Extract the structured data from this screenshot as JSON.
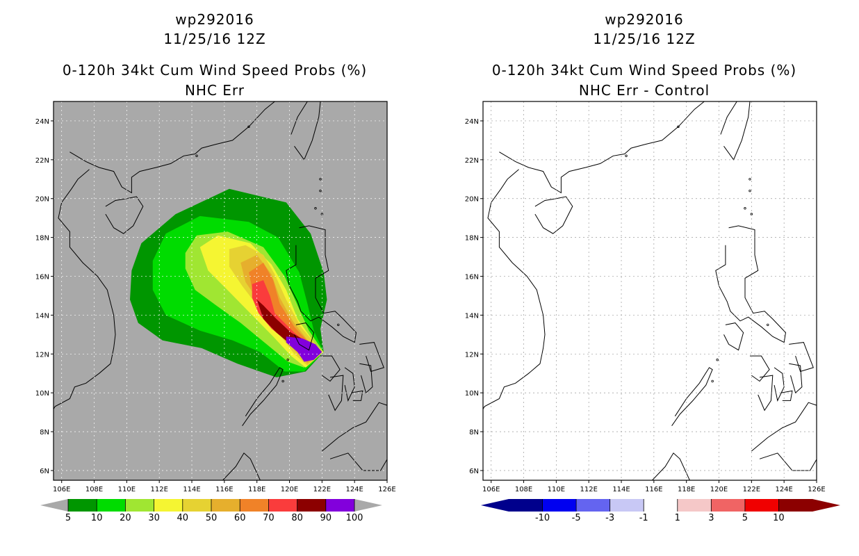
{
  "panels": [
    {
      "title_line1": "wp292016",
      "title_line2": "11/25/16 12Z",
      "title_line3": "0-120h 34kt Cum Wind Speed Probs (%)",
      "title_line4": "NHC Err",
      "background": "#a9a9a9"
    },
    {
      "title_line1": "wp292016",
      "title_line2": "11/25/16 12Z",
      "title_line3": "0-120h 34kt Cum Wind Speed Probs (%)",
      "title_line4": "NHC Err - Control",
      "background": "#ffffff"
    }
  ],
  "chart_data": [
    {
      "type": "heatmap",
      "title": "0-120h 34kt Cum Wind Speed Probs (%)",
      "subtitle": "NHC Err",
      "xlim": [
        105.5,
        126
      ],
      "ylim": [
        5.5,
        25
      ],
      "x_ticks": [
        "106E",
        "108E",
        "110E",
        "112E",
        "114E",
        "116E",
        "118E",
        "120E",
        "122E",
        "124E",
        "126E"
      ],
      "y_ticks": [
        "6N",
        "8N",
        "10N",
        "12N",
        "14N",
        "16N",
        "18N",
        "20N",
        "22N",
        "24N"
      ],
      "grid": true,
      "colorbar": {
        "labels": [
          "5",
          "10",
          "20",
          "30",
          "40",
          "50",
          "60",
          "70",
          "80",
          "90",
          "100"
        ],
        "colors": [
          "#009600",
          "#00dc00",
          "#a0e632",
          "#f5f532",
          "#e6d232",
          "#e6af2d",
          "#f08228",
          "#fa3c3c",
          "#8c0000",
          "#8200dc"
        ]
      },
      "contours": [
        {
          "level": "5",
          "color": "#009600",
          "points": [
            [
              110.9,
              17.7
            ],
            [
              113,
              19.2
            ],
            [
              116.3,
              20.5
            ],
            [
              119.8,
              19.8
            ],
            [
              121.3,
              18.2
            ],
            [
              122.1,
              16.2
            ],
            [
              122.3,
              14.8
            ],
            [
              121.9,
              13.3
            ],
            [
              122.1,
              12.1
            ],
            [
              121,
              11.1
            ],
            [
              119.2,
              10.8
            ],
            [
              116.8,
              11.5
            ],
            [
              114.6,
              12.3
            ],
            [
              112.2,
              12.7
            ],
            [
              110.7,
              13.6
            ],
            [
              110.2,
              14.8
            ],
            [
              110.3,
              16.3
            ]
          ]
        },
        {
          "level": "10",
          "color": "#00dc00",
          "points": [
            [
              111.6,
              16.8
            ],
            [
              112.4,
              18.2
            ],
            [
              114.5,
              19.1
            ],
            [
              117.5,
              18.8
            ],
            [
              119.3,
              18
            ],
            [
              120.6,
              16.2
            ],
            [
              121.1,
              14.6
            ],
            [
              121.5,
              13.2
            ],
            [
              122.1,
              12.1
            ],
            [
              120.9,
              11.1
            ],
            [
              119.7,
              11.1
            ],
            [
              118.2,
              12.1
            ],
            [
              116.5,
              12.7
            ],
            [
              114.5,
              13.2
            ],
            [
              112.4,
              14
            ],
            [
              111.6,
              15.3
            ]
          ]
        },
        {
          "level": "20",
          "color": "#a0e632",
          "points": [
            [
              113.6,
              17.2
            ],
            [
              114.3,
              18.1
            ],
            [
              116.2,
              18.3
            ],
            [
              118.4,
              17.5
            ],
            [
              119.7,
              16
            ],
            [
              120.5,
              14.5
            ],
            [
              121.2,
              13.2
            ],
            [
              122.1,
              12.1
            ],
            [
              120.9,
              11.3
            ],
            [
              119.9,
              11.6
            ],
            [
              118.6,
              12.5
            ],
            [
              117,
              13.6
            ],
            [
              115.5,
              14.5
            ],
            [
              114.2,
              15.3
            ],
            [
              113.6,
              16.4
            ]
          ]
        },
        {
          "level": "30",
          "color": "#f5f532",
          "points": [
            [
              114.5,
              17.5
            ],
            [
              115.6,
              18.1
            ],
            [
              117.6,
              17.7
            ],
            [
              118.9,
              16.6
            ],
            [
              119.8,
              15.3
            ],
            [
              120.5,
              13.8
            ],
            [
              121.6,
              12.5
            ],
            [
              122.1,
              12.1
            ],
            [
              121,
              11.3
            ],
            [
              120.1,
              11.9
            ],
            [
              119,
              12.9
            ],
            [
              117.7,
              14
            ],
            [
              116.3,
              15.2
            ],
            [
              115,
              16.3
            ]
          ]
        },
        {
          "level": "40",
          "color": "#e6d232",
          "points": [
            [
              116.3,
              17.4
            ],
            [
              117.3,
              17.6
            ],
            [
              118.4,
              17.1
            ],
            [
              119.1,
              16.1
            ],
            [
              119.8,
              14.8
            ],
            [
              120.7,
              13.4
            ],
            [
              121.8,
              12.3
            ],
            [
              122.1,
              12.1
            ],
            [
              121.1,
              11.4
            ],
            [
              120.3,
              12
            ],
            [
              119.2,
              13.2
            ],
            [
              118.1,
              14.4
            ],
            [
              117.1,
              15.5
            ],
            [
              116.3,
              16.5
            ]
          ]
        },
        {
          "level": "50",
          "color": "#e6af2d",
          "points": [
            [
              117,
              16.7
            ],
            [
              118,
              17.1
            ],
            [
              118.9,
              16.1
            ],
            [
              119.4,
              14.9
            ],
            [
              120.2,
              13.7
            ],
            [
              121.4,
              12.4
            ],
            [
              122,
              12.1
            ],
            [
              121.1,
              11.5
            ],
            [
              120.3,
              12.2
            ],
            [
              119.2,
              13.4
            ],
            [
              118.2,
              14.6
            ],
            [
              117.3,
              15.7
            ]
          ]
        },
        {
          "level": "60",
          "color": "#f08228",
          "points": [
            [
              117.5,
              16.2
            ],
            [
              118.4,
              16.7
            ],
            [
              119,
              15.8
            ],
            [
              119.4,
              14.6
            ],
            [
              120.3,
              13.4
            ],
            [
              121.5,
              12.3
            ],
            [
              122,
              12.1
            ],
            [
              121.1,
              11.6
            ],
            [
              120.2,
              12.4
            ],
            [
              119,
              13.7
            ],
            [
              117.8,
              15
            ]
          ]
        },
        {
          "level": "70",
          "color": "#fa3c3c",
          "points": [
            [
              117.7,
              15.6
            ],
            [
              118.4,
              15.8
            ],
            [
              118.8,
              15
            ],
            [
              119.1,
              14.1
            ],
            [
              120.3,
              13.1
            ],
            [
              121.4,
              12.3
            ],
            [
              122,
              12.1
            ],
            [
              121.1,
              11.7
            ],
            [
              120.1,
              12.5
            ],
            [
              118.9,
              13.3
            ],
            [
              118.1,
              14.1
            ],
            [
              117.7,
              14.9
            ]
          ]
        },
        {
          "level": "80",
          "color": "#8c0000",
          "points": [
            [
              118,
              14.8
            ],
            [
              118.4,
              14.5
            ],
            [
              119.2,
              13.8
            ],
            [
              120.1,
              13.1
            ],
            [
              121.2,
              12.6
            ],
            [
              122,
              12.1
            ],
            [
              121.1,
              11.8
            ],
            [
              120.2,
              12.4
            ],
            [
              119.2,
              13.1
            ],
            [
              118.4,
              13.8
            ]
          ]
        },
        {
          "level": "90",
          "color": "#8200dc",
          "points": [
            [
              119.8,
              12.9
            ],
            [
              120.8,
              12.8
            ],
            [
              121.6,
              12.5
            ],
            [
              122,
              12.1
            ],
            [
              121.5,
              11.7
            ],
            [
              120.9,
              11.6
            ],
            [
              120.5,
              12.1
            ],
            [
              119.8,
              12.6
            ]
          ]
        }
      ]
    },
    {
      "type": "heatmap",
      "title": "0-120h 34kt Cum Wind Speed Probs (%)",
      "subtitle": "NHC Err - Control",
      "xlim": [
        105.5,
        126
      ],
      "ylim": [
        5.5,
        25
      ],
      "x_ticks": [
        "106E",
        "108E",
        "110E",
        "112E",
        "114E",
        "116E",
        "118E",
        "120E",
        "122E",
        "124E",
        "126E"
      ],
      "y_ticks": [
        "6N",
        "8N",
        "10N",
        "12N",
        "14N",
        "16N",
        "18N",
        "20N",
        "22N",
        "24N"
      ],
      "grid": true,
      "colorbar": {
        "labels": [
          "-10",
          "-5",
          "-3",
          "-1",
          "1",
          "3",
          "5",
          "10"
        ],
        "colors": [
          "#00008c",
          "#0000f0",
          "#6464f0",
          "#c8c8f5",
          "#ffffff",
          "#f5c8c8",
          "#f06464",
          "#f00000",
          "#8c0000"
        ]
      },
      "contours": []
    }
  ]
}
